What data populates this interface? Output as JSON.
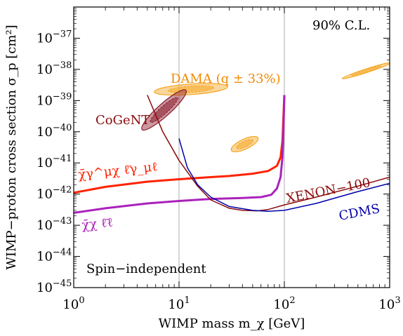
{
  "chart_data": {
    "type": "line",
    "xlabel": "WIMP mass m_χ [GeV]",
    "ylabel": "WIMP−proton cross section σ_p [cm²]",
    "x_scale": "log",
    "y_scale": "log",
    "xlim": [
      1,
      1000
    ],
    "ylim": [
      1e-45,
      1e-36
    ],
    "grid": true,
    "x_ticks": [
      {
        "value": 1,
        "base": "10",
        "exp": "0"
      },
      {
        "value": 10,
        "base": "10",
        "exp": "1"
      },
      {
        "value": 100,
        "base": "10",
        "exp": "2"
      },
      {
        "value": 1000,
        "base": "10",
        "exp": "3"
      }
    ],
    "y_ticks": [
      {
        "value": 1e-37,
        "base": "10",
        "exp": "−37"
      },
      {
        "value": 1e-38,
        "base": "10",
        "exp": "−38"
      },
      {
        "value": 1e-39,
        "base": "10",
        "exp": "−39"
      },
      {
        "value": 1e-40,
        "base": "10",
        "exp": "−40"
      },
      {
        "value": 1e-41,
        "base": "10",
        "exp": "−41"
      },
      {
        "value": 1e-42,
        "base": "10",
        "exp": "−42"
      },
      {
        "value": 1e-43,
        "base": "10",
        "exp": "−43"
      },
      {
        "value": 1e-44,
        "base": "10",
        "exp": "−44"
      },
      {
        "value": 1e-45,
        "base": "10",
        "exp": "−45"
      }
    ],
    "annotations": {
      "cl": "90% C.L.",
      "spin": "Spin−independent",
      "dama": "DAMA (q ± 33%)",
      "cogent": "CoGeNT",
      "xenon": "XENON−100",
      "cdms": "CDMS",
      "op_gamma": "χ̄γ^μχ ℓ̄γ_μℓ",
      "op_scalar": "χ̄χ ℓ̄ℓ"
    },
    "series": [
      {
        "name": "χ̄γ^μχ ℓ̄γ_μℓ",
        "color": "#ff2200",
        "width": 3,
        "points": [
          [
            1,
            1.1e-42
          ],
          [
            2,
            1.7e-42
          ],
          [
            5,
            2.5e-42
          ],
          [
            10,
            3e-42
          ],
          [
            20,
            3.5e-42
          ],
          [
            30,
            3.8e-42
          ],
          [
            50,
            4.5e-42
          ],
          [
            70,
            5.5e-42
          ],
          [
            85,
            8e-42
          ],
          [
            92,
            1.5e-41
          ],
          [
            96,
            5e-41
          ],
          [
            98,
            3e-40
          ],
          [
            100,
            1.5e-39
          ]
        ]
      },
      {
        "name": "χ̄χ ℓ̄ℓ",
        "color": "#aa22bb",
        "width": 3,
        "points": [
          [
            1,
            2.5e-43
          ],
          [
            2,
            3.5e-43
          ],
          [
            5,
            5e-43
          ],
          [
            10,
            6e-43
          ],
          [
            20,
            7e-43
          ],
          [
            40,
            7.5e-43
          ],
          [
            60,
            8e-43
          ],
          [
            75,
            9.5e-43
          ],
          [
            85,
            1.5e-42
          ],
          [
            92,
            3.5e-42
          ],
          [
            96,
            1.5e-41
          ],
          [
            98,
            1e-40
          ],
          [
            100,
            1.5e-39
          ]
        ]
      },
      {
        "name": "XENON−100",
        "color": "#8b0a0a",
        "width": 1.5,
        "points": [
          [
            5,
            1.5e-39
          ],
          [
            7,
            1e-40
          ],
          [
            10,
            1.2e-41
          ],
          [
            15,
            1.8e-42
          ],
          [
            20,
            6.5e-43
          ],
          [
            30,
            3.5e-43
          ],
          [
            40,
            3e-43
          ],
          [
            55,
            2.9e-43
          ],
          [
            70,
            3.2e-43
          ],
          [
            100,
            4.5e-43
          ],
          [
            200,
            8e-43
          ],
          [
            500,
            1.8e-42
          ],
          [
            1000,
            3.5e-42
          ]
        ]
      },
      {
        "name": "CDMS",
        "color": "#0000aa",
        "width": 1.5,
        "points": [
          [
            10,
            6e-41
          ],
          [
            12,
            7e-42
          ],
          [
            15,
            2e-42
          ],
          [
            20,
            8e-43
          ],
          [
            30,
            4e-43
          ],
          [
            50,
            3e-43
          ],
          [
            70,
            2.8e-43
          ],
          [
            100,
            3e-43
          ],
          [
            200,
            5e-43
          ],
          [
            500,
            1.2e-42
          ],
          [
            1000,
            2.2e-42
          ]
        ]
      }
    ],
    "regions": [
      {
        "name": "DAMA",
        "color": "#f5a623",
        "center": [
          13,
          2.3e-39
        ],
        "rx": 0.35,
        "ry": 0.17,
        "angle": -4
      },
      {
        "name": "DAMA",
        "color": "#f5a623",
        "center": [
          42,
          4e-41
        ],
        "rx": 0.14,
        "ry": 0.16,
        "angle": -25
      },
      {
        "name": "DAMA",
        "color": "#f5a623",
        "center": [
          600,
          9e-39
        ],
        "rx": 0.24,
        "ry": 0.06,
        "angle": -18
      },
      {
        "name": "CoGeNT",
        "color": "#8b1a2a",
        "center": [
          7.2,
          5e-40
        ],
        "rx": 0.28,
        "ry": 0.2,
        "angle": -42
      }
    ]
  }
}
